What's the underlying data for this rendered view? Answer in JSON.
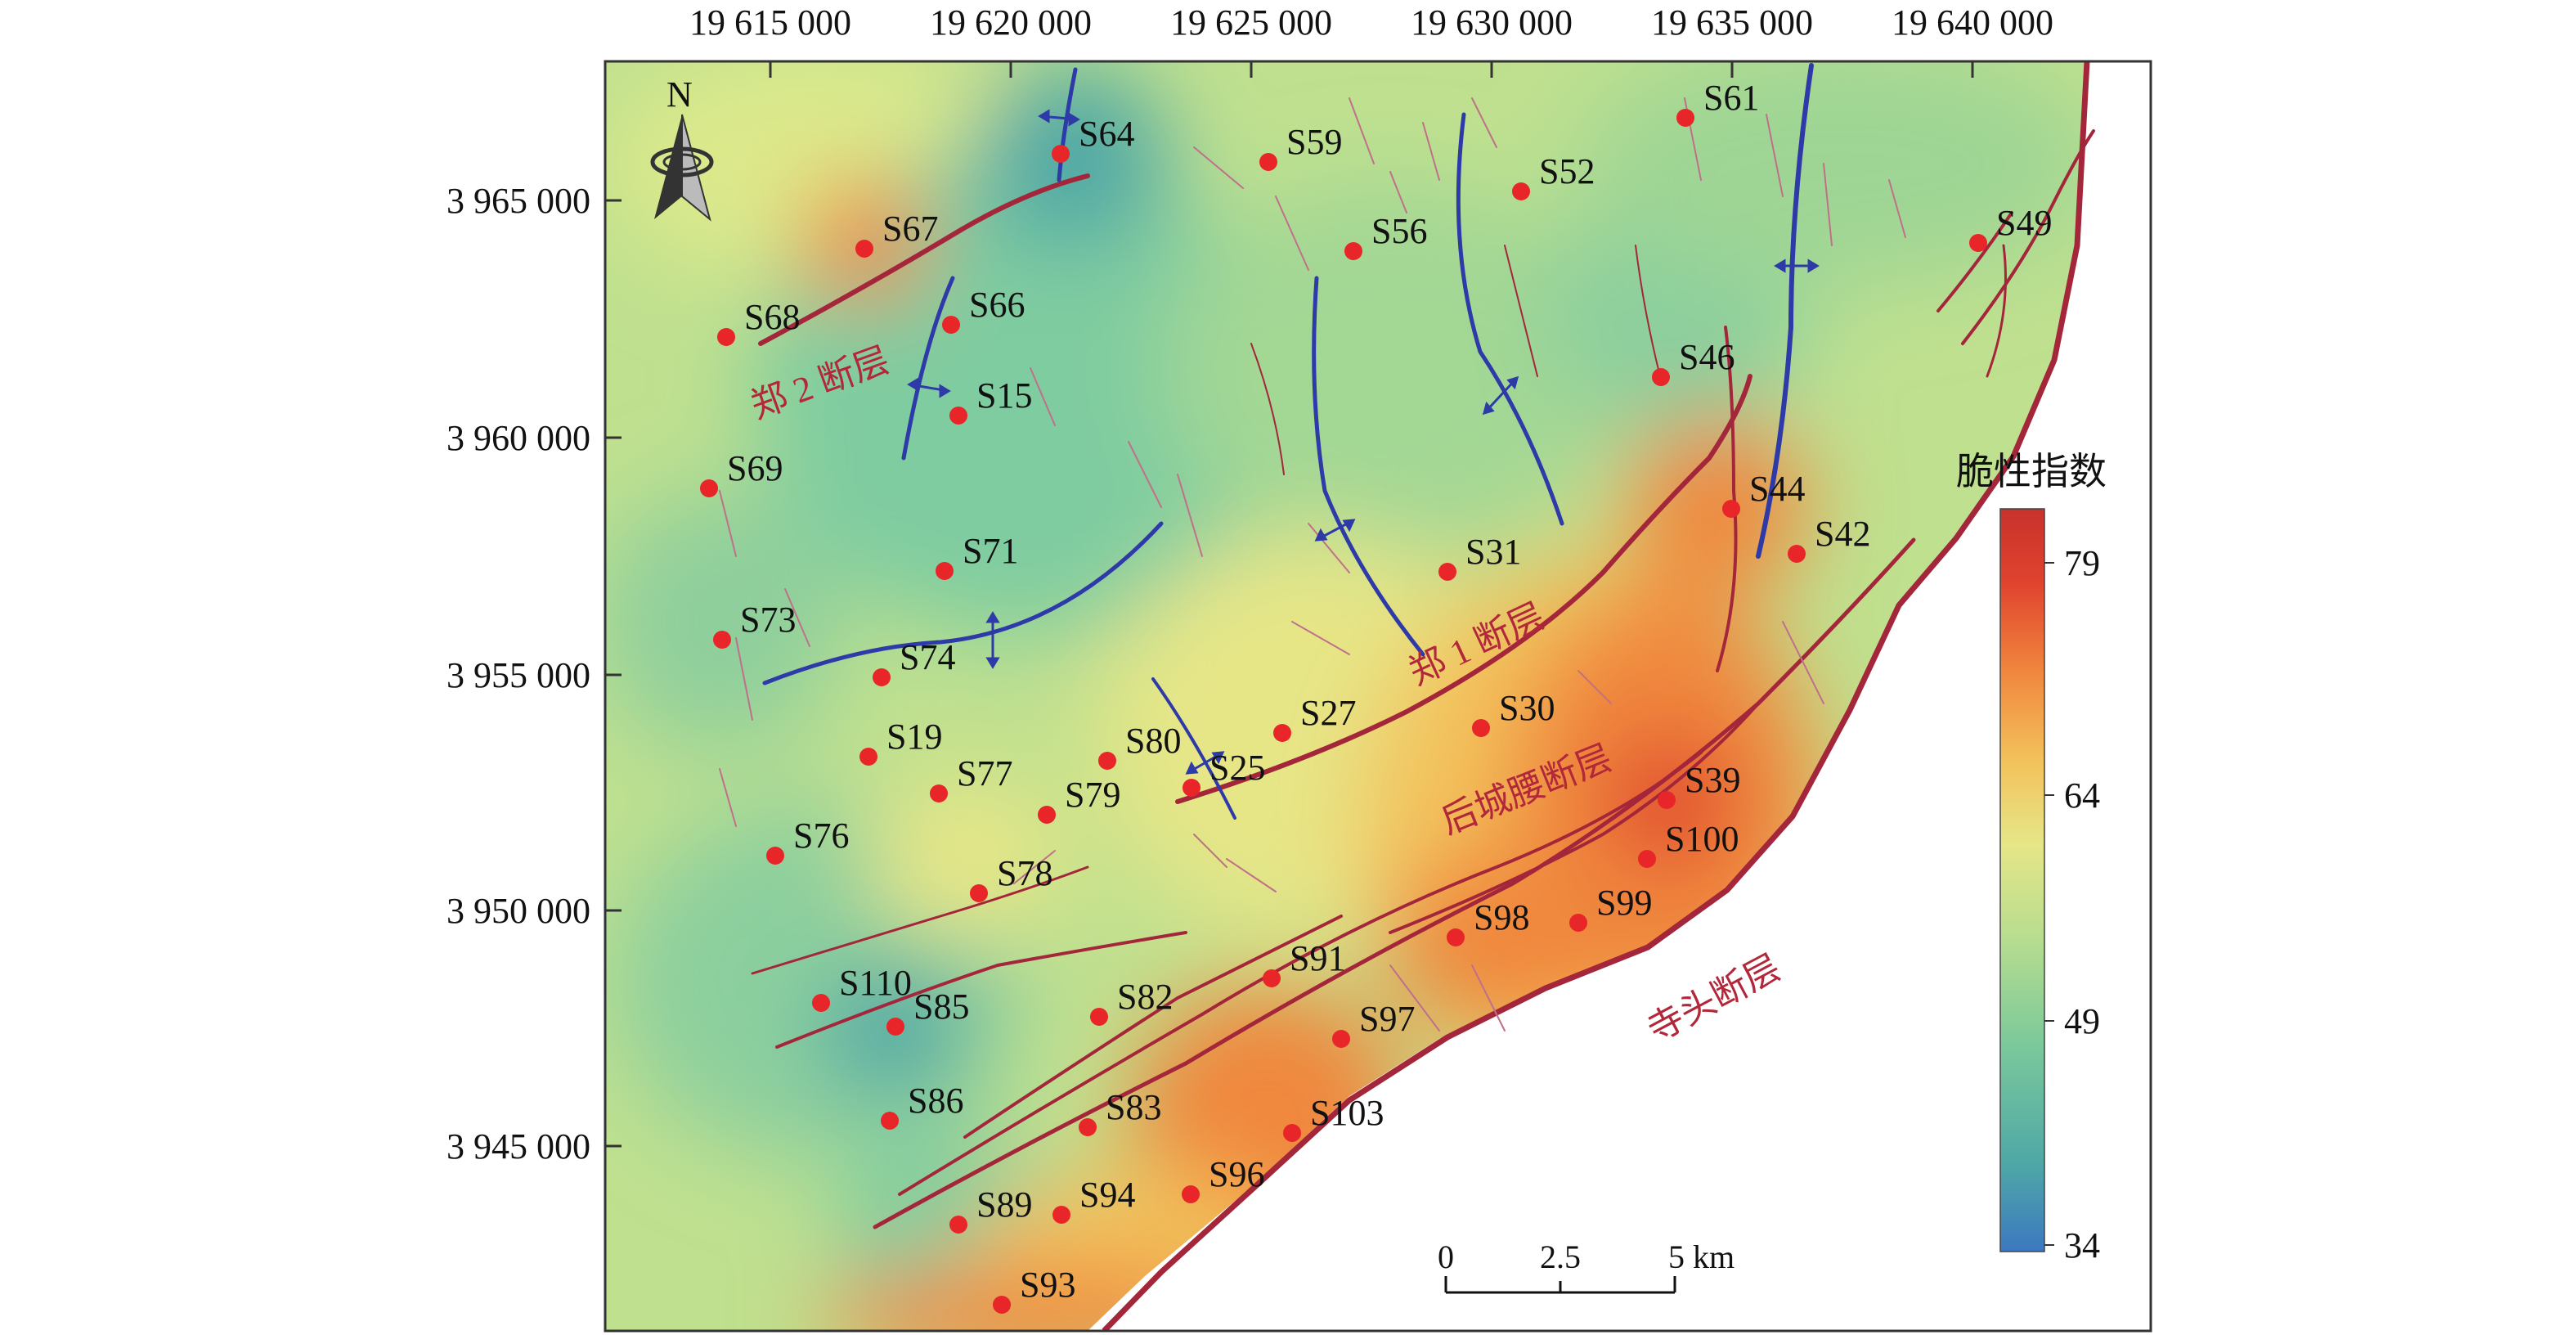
{
  "colors": {
    "fault": "#a3263a",
    "fold_axis": "#2d3aa8",
    "well": "#e8262a",
    "frame": "#333333",
    "ramp": [
      "#3c78c0",
      "#4fa8a6",
      "#7cc99b",
      "#b7dd8f",
      "#e6e687",
      "#f3c25c",
      "#f0873e",
      "#e0432e",
      "#c8322b"
    ]
  },
  "map": {
    "x_ticks": [
      "19 615 000",
      "19 620 000",
      "19 625 000",
      "19 630 000",
      "19 635 000",
      "19 640 000"
    ],
    "y_ticks": [
      "3 965 000",
      "3 960 000",
      "3 955 000",
      "3 950 000",
      "3 945 000"
    ],
    "north_label": "N",
    "north_icon": "north-arrow-icon",
    "wells": [
      "S64",
      "S59",
      "S61",
      "S52",
      "S67",
      "S56",
      "S49",
      "S68",
      "S66",
      "S15",
      "S46",
      "S69",
      "S44",
      "S42",
      "S71",
      "S31",
      "S73",
      "S74",
      "S19",
      "S80",
      "S27",
      "S30",
      "S25",
      "S77",
      "S79",
      "S39",
      "S76",
      "S100",
      "S78",
      "S98",
      "S99",
      "S110",
      "S85",
      "S91",
      "S82",
      "S97",
      "S86",
      "S83",
      "S103",
      "S89",
      "S94",
      "S96",
      "S93"
    ],
    "fault_labels": [
      "郑 2 断层",
      "郑 1 断层",
      "后城腰断层",
      "寺头断层"
    ]
  },
  "legend": {
    "title": "脆性指数",
    "ticks": [
      "79",
      "64",
      "49",
      "34"
    ]
  },
  "scale_bar": {
    "labels": [
      "0",
      "2.5",
      "5 km"
    ]
  }
}
